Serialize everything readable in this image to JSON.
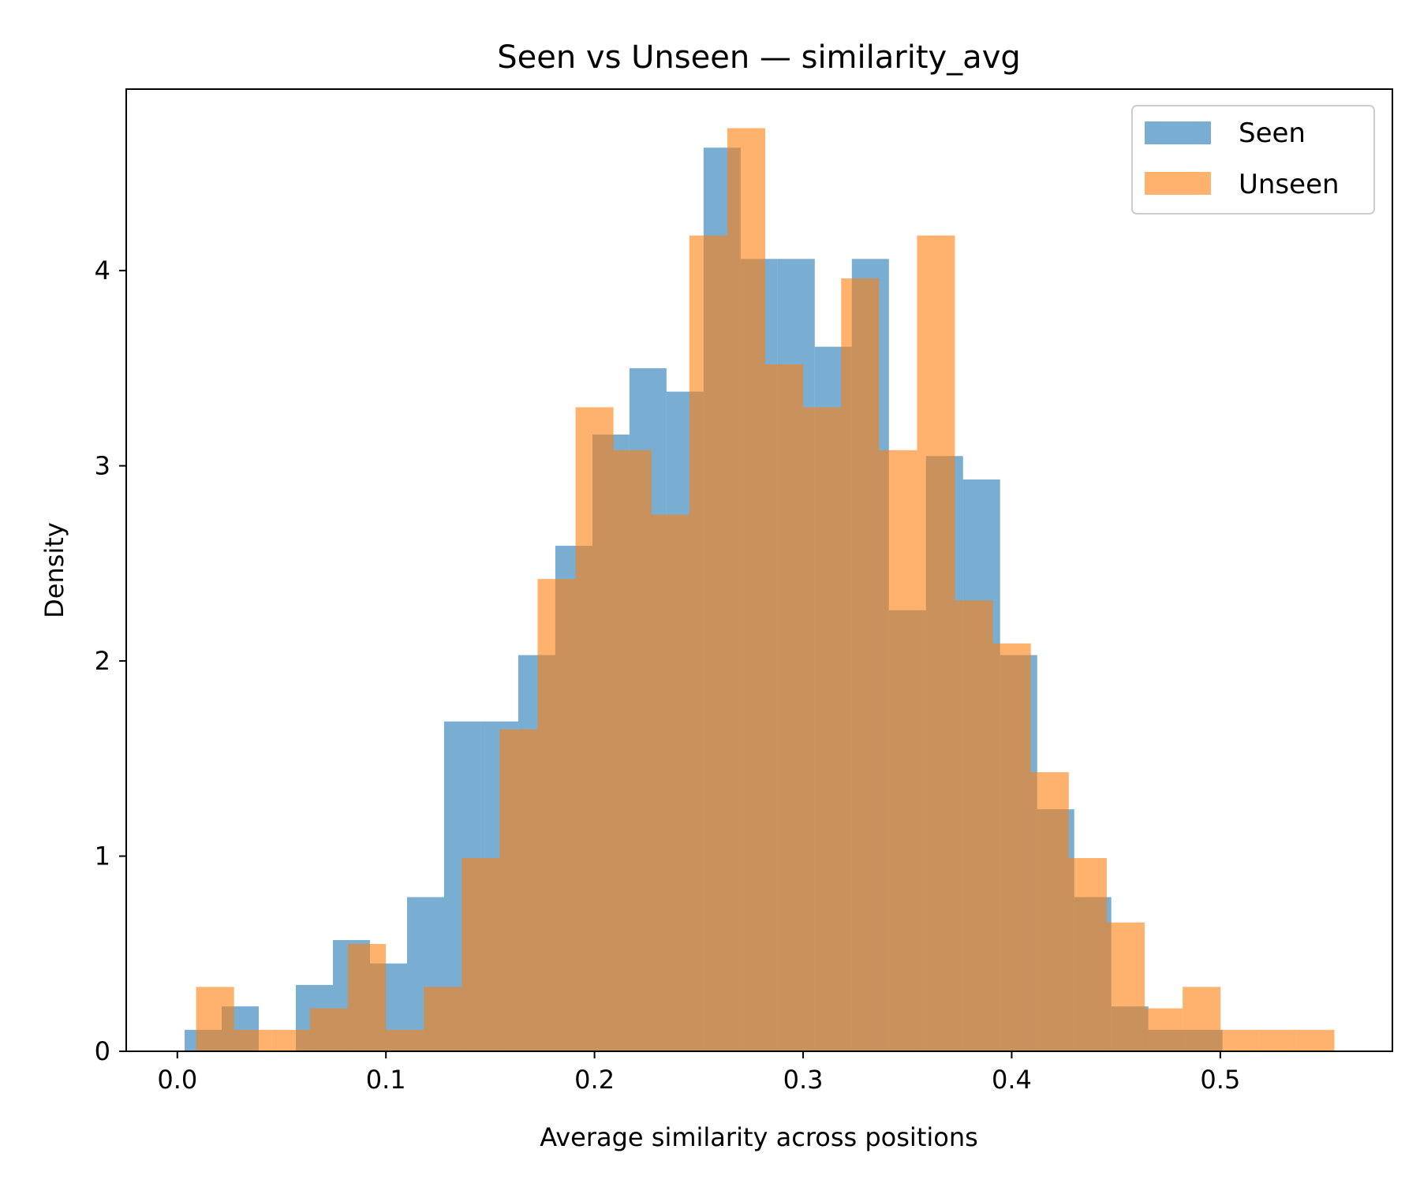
{
  "chart_data": {
    "type": "bar",
    "title": "Seen vs Unseen — similarity_avg",
    "xlabel": "Average similarity across positions",
    "ylabel": "Density",
    "xlim": [
      -0.0245,
      0.5825
    ],
    "ylim": [
      0,
      4.93
    ],
    "xticks": [
      {
        "value": 0.0,
        "label": "0.0"
      },
      {
        "value": 0.1,
        "label": "0.1"
      },
      {
        "value": 0.2,
        "label": "0.2"
      },
      {
        "value": 0.3,
        "label": "0.3"
      },
      {
        "value": 0.4,
        "label": "0.4"
      },
      {
        "value": 0.5,
        "label": "0.5"
      }
    ],
    "yticks": [
      {
        "value": 0,
        "label": "0"
      },
      {
        "value": 1,
        "label": "1"
      },
      {
        "value": 2,
        "label": "2"
      },
      {
        "value": 3,
        "label": "3"
      },
      {
        "value": 4,
        "label": "4"
      }
    ],
    "legend": {
      "position": "upper right",
      "entries": [
        {
          "name": "Seen",
          "color": "#1f77b4"
        },
        {
          "name": "Unseen",
          "color": "#ff7f0e"
        }
      ]
    },
    "series": [
      {
        "name": "Seen",
        "color": "#1f77b4",
        "alpha": 0.6,
        "bin_start": 0.0035,
        "bin_width": 0.01777,
        "values": [
          0.11,
          0.23,
          0.0,
          0.34,
          0.57,
          0.45,
          0.79,
          1.69,
          1.69,
          2.03,
          2.59,
          3.16,
          3.5,
          3.38,
          4.63,
          4.06,
          4.06,
          3.61,
          4.06,
          2.26,
          3.05,
          2.93,
          2.03,
          1.24,
          0.79,
          0.23,
          0.11,
          0.11
        ]
      },
      {
        "name": "Unseen",
        "color": "#ff7f0e",
        "alpha": 0.6,
        "bin_start": 0.009,
        "bin_width": 0.01819,
        "values": [
          0.33,
          0.11,
          0.11,
          0.22,
          0.55,
          0.11,
          0.33,
          0.99,
          1.65,
          2.42,
          3.3,
          3.08,
          2.75,
          4.18,
          4.73,
          3.52,
          3.3,
          3.96,
          3.08,
          4.18,
          2.31,
          2.09,
          1.43,
          0.99,
          0.66,
          0.22,
          0.33,
          0.11,
          0.11,
          0.11
        ]
      }
    ]
  }
}
